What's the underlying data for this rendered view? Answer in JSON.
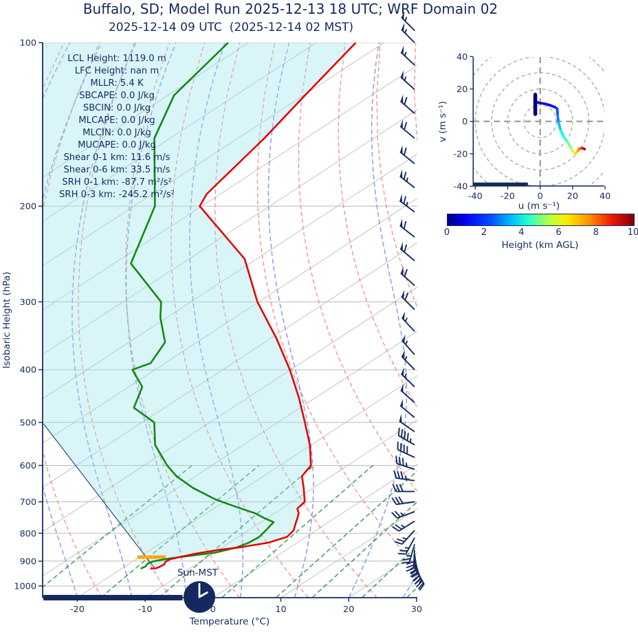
{
  "header": {
    "title": "Buffalo, SD; Model Run 2025-12-13 18 UTC; WRF Domain 02",
    "subtitle": "2025-12-14 09 UTC  (2025-12-14 02 MST)"
  },
  "skewt": {
    "ylabel": "Isobaric Height (hPa)",
    "xlabel": "Temperature (°C)",
    "x_ticks": [
      -20,
      -10,
      0,
      10,
      20,
      30
    ],
    "y_ticks": [
      100,
      200,
      300,
      400,
      500,
      600,
      700,
      800,
      900,
      1000
    ],
    "xlim_c": [
      -25,
      30
    ],
    "pressure_range_hpa": [
      100,
      1050
    ],
    "sun_label": "Sun-MST",
    "sun_clock_time": "02:00",
    "stats": [
      {
        "label": "LCL Height",
        "value": "1119.0 m"
      },
      {
        "label": "LFC Height",
        "value": "nan m"
      },
      {
        "label": "MLLR",
        "value": "5.4 K"
      },
      {
        "label": "SBCAPE",
        "value": "0.0 J/kg"
      },
      {
        "label": "SBCIN",
        "value": "0.0 J/kg"
      },
      {
        "label": "MLCAPE",
        "value": "0.0 J/kg"
      },
      {
        "label": "MLCIN",
        "value": "0.0 J/kg"
      },
      {
        "label": "MUCAPE",
        "value": "0.0 J/kg"
      },
      {
        "label": "Shear 0-1 km",
        "value": "11.6 m/s"
      },
      {
        "label": "Shear 0-6 km",
        "value": "33.5 m/s"
      },
      {
        "label": "SRH 0-1 km",
        "value": "-87.7 m²/s²"
      },
      {
        "label": "SRH 0-3 km",
        "value": "-245.2 m²/s²"
      }
    ]
  },
  "hodograph": {
    "xlabel": "u (m s⁻¹)",
    "ylabel": "v (m s⁻¹)",
    "x_ticks": [
      -40,
      -20,
      0,
      20,
      40
    ],
    "y_ticks": [
      40,
      20,
      0,
      -20,
      -40
    ],
    "ring_radii_ms": [
      10,
      20,
      30,
      40,
      50
    ],
    "axis_limit_ms": [
      -40,
      40
    ]
  },
  "colorbar": {
    "label": "Height (km AGL)",
    "ticks": [
      0,
      2,
      4,
      6,
      8,
      10
    ],
    "range_km": [
      0,
      10
    ]
  },
  "chart_data": {
    "type": "skewt_log_p_sounding_with_hodograph",
    "temperature_profile": {
      "pressure_hpa": [
        929,
        928,
        921,
        912,
        903,
        893,
        884,
        871,
        858,
        848,
        832,
        812,
        790,
        763,
        750,
        735,
        720,
        700,
        660,
        628,
        600,
        550,
        500,
        450,
        400,
        350,
        300,
        250,
        200,
        190,
        150,
        125,
        100
      ],
      "temp_c": [
        -15.8,
        -15.0,
        -14.8,
        -14.7,
        -15.1,
        -15.0,
        -14.0,
        -12.4,
        -9.9,
        -7.2,
        -4.2,
        -2.8,
        -3.3,
        -4.8,
        -5.5,
        -6.4,
        -7.7,
        -8.1,
        -11.4,
        -14.3,
        -15.4,
        -20.2,
        -26.0,
        -32.5,
        -40.1,
        -49.2,
        -60.2,
        -71.8,
        -90.3,
        -92.0,
        -96.1,
        -99.8,
        -104.2
      ]
    },
    "dewpoint_profile": {
      "pressure_hpa": [
        929,
        920,
        910,
        901,
        890,
        879,
        868,
        850,
        832,
        812,
        790,
        763,
        750,
        735,
        717,
        693,
        660,
        628,
        600,
        550,
        500,
        470,
        430,
        400,
        389,
        356,
        321,
        300,
        255,
        200,
        150,
        125,
        100
      ],
      "dewpoint_c": [
        -17.2,
        -17.0,
        -17.3,
        -17.0,
        -15.3,
        -12.6,
        -9.8,
        -7.9,
        -7.1,
        -6.9,
        -7.4,
        -8.1,
        -10.4,
        -12.8,
        -16.7,
        -21.8,
        -27.7,
        -32.8,
        -36.6,
        -43.0,
        -48.2,
        -54.5,
        -58.0,
        -63.3,
        -62.1,
        -64.7,
        -70.9,
        -74.4,
        -87.5,
        -96.9,
        -112.3,
        -119.1,
        -123.0
      ]
    },
    "parcel_path": {
      "pressure_hpa": [
        928,
        503
      ],
      "temp_c": [
        -15.2,
        -64.2
      ]
    },
    "lcl_marker": {
      "pressure_hpa": 885,
      "temp_c": -18.2,
      "halfwidth_c": 2.1,
      "color": "#FFA500"
    },
    "cin_shading": "pale cyan fill between surface parcel path and temperature curve",
    "skewt_surface_bar": {
      "temp_range_c": [
        -25,
        -4.5
      ]
    },
    "wind_barbs": [
      {
        "p": 95,
        "dir": 315,
        "kt": 55
      },
      {
        "p": 100,
        "dir": 315,
        "kt": 55
      },
      {
        "p": 110,
        "dir": 313,
        "kt": 57
      },
      {
        "p": 122,
        "dir": 312,
        "kt": 58
      },
      {
        "p": 135,
        "dir": 311,
        "kt": 60
      },
      {
        "p": 150,
        "dir": 310,
        "kt": 60
      },
      {
        "p": 167,
        "dir": 309,
        "kt": 62
      },
      {
        "p": 185,
        "dir": 308,
        "kt": 63
      },
      {
        "p": 205,
        "dir": 307,
        "kt": 63
      },
      {
        "p": 228,
        "dir": 308,
        "kt": 62
      },
      {
        "p": 252,
        "dir": 310,
        "kt": 62
      },
      {
        "p": 280,
        "dir": 312,
        "kt": 60
      },
      {
        "p": 310,
        "dir": 315,
        "kt": 60
      },
      {
        "p": 340,
        "dir": 317,
        "kt": 58
      },
      {
        "p": 375,
        "dir": 318,
        "kt": 57
      },
      {
        "p": 400,
        "dir": 316,
        "kt": 55
      },
      {
        "p": 430,
        "dir": 314,
        "kt": 53
      },
      {
        "p": 460,
        "dir": 312,
        "kt": 52
      },
      {
        "p": 490,
        "dir": 310,
        "kt": 51
      },
      {
        "p": 520,
        "dir": 305,
        "kt": 50
      },
      {
        "p": 550,
        "dir": 300,
        "kt": 45
      },
      {
        "p": 580,
        "dir": 295,
        "kt": 40
      },
      {
        "p": 610,
        "dir": 288,
        "kt": 38
      },
      {
        "p": 640,
        "dir": 278,
        "kt": 35
      },
      {
        "p": 670,
        "dir": 270,
        "kt": 32
      },
      {
        "p": 700,
        "dir": 262,
        "kt": 30
      },
      {
        "p": 730,
        "dir": 250,
        "kt": 28
      },
      {
        "p": 760,
        "dir": 238,
        "kt": 26
      },
      {
        "p": 790,
        "dir": 222,
        "kt": 25
      },
      {
        "p": 815,
        "dir": 208,
        "kt": 26
      },
      {
        "p": 838,
        "dir": 196,
        "kt": 28
      },
      {
        "p": 858,
        "dir": 183,
        "kt": 30
      },
      {
        "p": 874,
        "dir": 172,
        "kt": 32
      },
      {
        "p": 888,
        "dir": 166,
        "kt": 30
      },
      {
        "p": 901,
        "dir": 161,
        "kt": 27
      },
      {
        "p": 912,
        "dir": 157,
        "kt": 22
      },
      {
        "p": 921,
        "dir": 152,
        "kt": 15
      },
      {
        "p": 927,
        "dir": 149,
        "kt": 10
      }
    ],
    "hodograph_trace": {
      "u_ms": [
        -2.9,
        -3.0,
        -3.0,
        -2.8,
        0.0,
        3.5,
        6.5,
        9.1,
        10.5,
        10.8,
        11.3,
        12.7,
        14.8,
        16.9,
        19.0,
        20.4,
        21.8,
        23.2,
        24.3,
        26.0,
        27.0,
        27.4
      ],
      "v_ms": [
        4.5,
        10.0,
        16.5,
        12.0,
        11.3,
        10.7,
        9.8,
        8.8,
        7.8,
        3.5,
        -0.7,
        -5.7,
        -10.0,
        -12.8,
        -16.4,
        -18.8,
        -19.9,
        -18.2,
        -16.8,
        -16.5,
        -16.9,
        -17.1
      ],
      "height_km": [
        0,
        0.1,
        0.25,
        0.5,
        0.7,
        0.9,
        1.1,
        1.4,
        1.7,
        2.2,
        2.8,
        3.4,
        4.0,
        4.6,
        5.2,
        5.8,
        6.3,
        6.9,
        7.6,
        8.4,
        9.2,
        10
      ]
    },
    "hodograph_low_level_segment": {
      "u_ms": -3.0,
      "v_range_ms": [
        4.5,
        16.5
      ]
    },
    "hodograph_surface_bar": {
      "v_ms": -39,
      "u_range_ms": [
        -41,
        -7.3
      ]
    },
    "background_lines": {
      "isotherms_c": [
        -120,
        -110,
        -100,
        -90,
        -80,
        -70,
        -60,
        -50,
        -40,
        -30,
        -20,
        -10,
        0,
        10,
        20,
        30,
        40
      ],
      "dry_adiabats_theta_c": [
        -30,
        -20,
        -10,
        0,
        10,
        20,
        30,
        40,
        50,
        60,
        70,
        80,
        90,
        100,
        110,
        120,
        130,
        140,
        150
      ],
      "moist_adiabats_t0_c": [
        -36,
        -28,
        -20,
        -12,
        -4,
        4,
        12,
        20,
        28,
        36
      ],
      "mixing_ratio_g_kg": [
        0.4,
        1,
        2,
        4,
        7,
        10,
        16,
        24,
        32
      ],
      "mixing_ratio_top_hpa": 600
    },
    "colors": {
      "accent_navy": "#142a5e",
      "temperature": "#e10600",
      "dewpoint": "#0f8a10",
      "parcel": "#1a3a6b",
      "cin_shade": "rgba(150,226,235,0.35)",
      "dry_adiabat": "rgba(240,100,100,0.75)",
      "moist_adiabat": "rgba(125,135,235,0.85)",
      "mixing_ratio": "rgba(30,140,60,0.8)",
      "isotherm": "#bcbcbc",
      "gridline": "#b9b9b9",
      "lcl": "#FFA500"
    }
  }
}
